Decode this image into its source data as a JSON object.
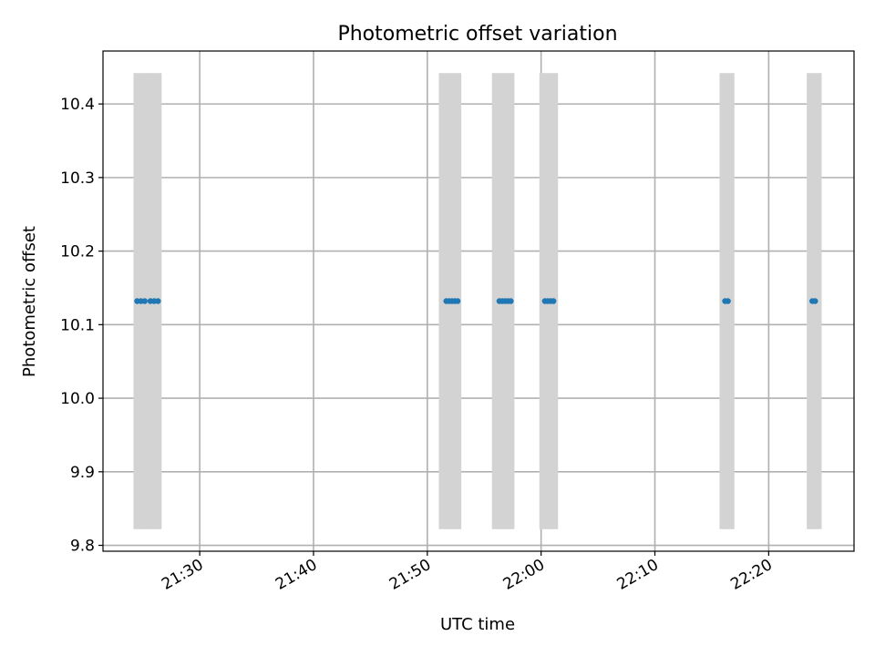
{
  "chart_data": {
    "type": "scatter",
    "title": "Photometric offset variation",
    "xlabel": "UTC time",
    "ylabel": "Photometric offset",
    "xlim": [
      "21:21:30",
      "22:27:30"
    ],
    "ylim": [
      9.792,
      10.472
    ],
    "grid": true,
    "xticks": [
      "21:30",
      "21:40",
      "21:50",
      "22:00",
      "22:10",
      "22:20"
    ],
    "yticks": [
      "9.8",
      "9.9",
      "10.0",
      "10.1",
      "10.2",
      "10.3",
      "10.4"
    ],
    "bands": [
      {
        "start": "21:24:30",
        "end": "21:25:10",
        "low": 9.822,
        "high": 10.442
      },
      {
        "start": "21:25:40",
        "end": "21:26:20",
        "low": 9.822,
        "high": 10.442
      },
      {
        "start": "21:51:20",
        "end": "21:52:40",
        "low": 9.822,
        "high": 10.442
      },
      {
        "start": "21:56:00",
        "end": "21:57:20",
        "low": 9.822,
        "high": 10.442
      },
      {
        "start": "22:00:10",
        "end": "22:01:10",
        "low": 9.822,
        "high": 10.442
      },
      {
        "start": "22:16:00",
        "end": "22:16:40",
        "low": 9.822,
        "high": 10.442
      },
      {
        "start": "22:23:40",
        "end": "22:24:20",
        "low": 9.822,
        "high": 10.442
      }
    ],
    "series": [
      {
        "color": "#1f77b4",
        "points": [
          {
            "x": "21:24:30",
            "y": 10.132
          },
          {
            "x": "21:24:50",
            "y": 10.132
          },
          {
            "x": "21:25:10",
            "y": 10.132
          },
          {
            "x": "21:25:40",
            "y": 10.132
          },
          {
            "x": "21:26:00",
            "y": 10.132
          },
          {
            "x": "21:26:20",
            "y": 10.132
          },
          {
            "x": "21:51:40",
            "y": 10.132
          },
          {
            "x": "21:51:55",
            "y": 10.132
          },
          {
            "x": "21:52:10",
            "y": 10.132
          },
          {
            "x": "21:52:25",
            "y": 10.132
          },
          {
            "x": "21:52:40",
            "y": 10.132
          },
          {
            "x": "21:56:20",
            "y": 10.132
          },
          {
            "x": "21:56:35",
            "y": 10.132
          },
          {
            "x": "21:56:50",
            "y": 10.132
          },
          {
            "x": "21:57:05",
            "y": 10.132
          },
          {
            "x": "21:57:20",
            "y": 10.132
          },
          {
            "x": "22:00:20",
            "y": 10.132
          },
          {
            "x": "22:00:35",
            "y": 10.132
          },
          {
            "x": "22:00:50",
            "y": 10.132
          },
          {
            "x": "22:01:05",
            "y": 10.132
          },
          {
            "x": "22:16:10",
            "y": 10.132
          },
          {
            "x": "22:16:25",
            "y": 10.132
          },
          {
            "x": "22:23:50",
            "y": 10.132
          },
          {
            "x": "22:24:05",
            "y": 10.132
          }
        ]
      }
    ],
    "band_color": "#d3d3d3"
  }
}
